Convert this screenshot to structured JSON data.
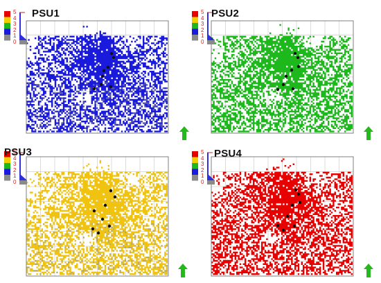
{
  "colors": {
    "legend_classes": [
      "#8a8a8a",
      "#1a1adc",
      "#1cb81c",
      "#f2d000",
      "#e60000"
    ],
    "north_arrow": "#27b81f",
    "tick_labels": "#d4211f",
    "grid": "#b8b8b8",
    "frame": "#7a7a7a",
    "wells": "#111111"
  },
  "legend": {
    "ticks": [
      "5",
      "4",
      "3",
      "2",
      "1",
      "0"
    ]
  },
  "panels": [
    {
      "id": "psu1",
      "title": "PSU1",
      "fill_color": "#1a1adc",
      "dark_color": "#0c0c86"
    },
    {
      "id": "psu2",
      "title": "PSU2",
      "fill_color": "#1cb81c",
      "dark_color": "#0f6e0f"
    },
    {
      "id": "psu3",
      "title": "PSU3",
      "fill_color": "#f0c310",
      "dark_color": "#a58a12"
    },
    {
      "id": "psu4",
      "title": "PSU4",
      "fill_color": "#e60000",
      "dark_color": "#8a0000"
    }
  ],
  "icons": {
    "north_arrow": "north-arrow-icon",
    "legend": "colorbar-legend-icon"
  }
}
